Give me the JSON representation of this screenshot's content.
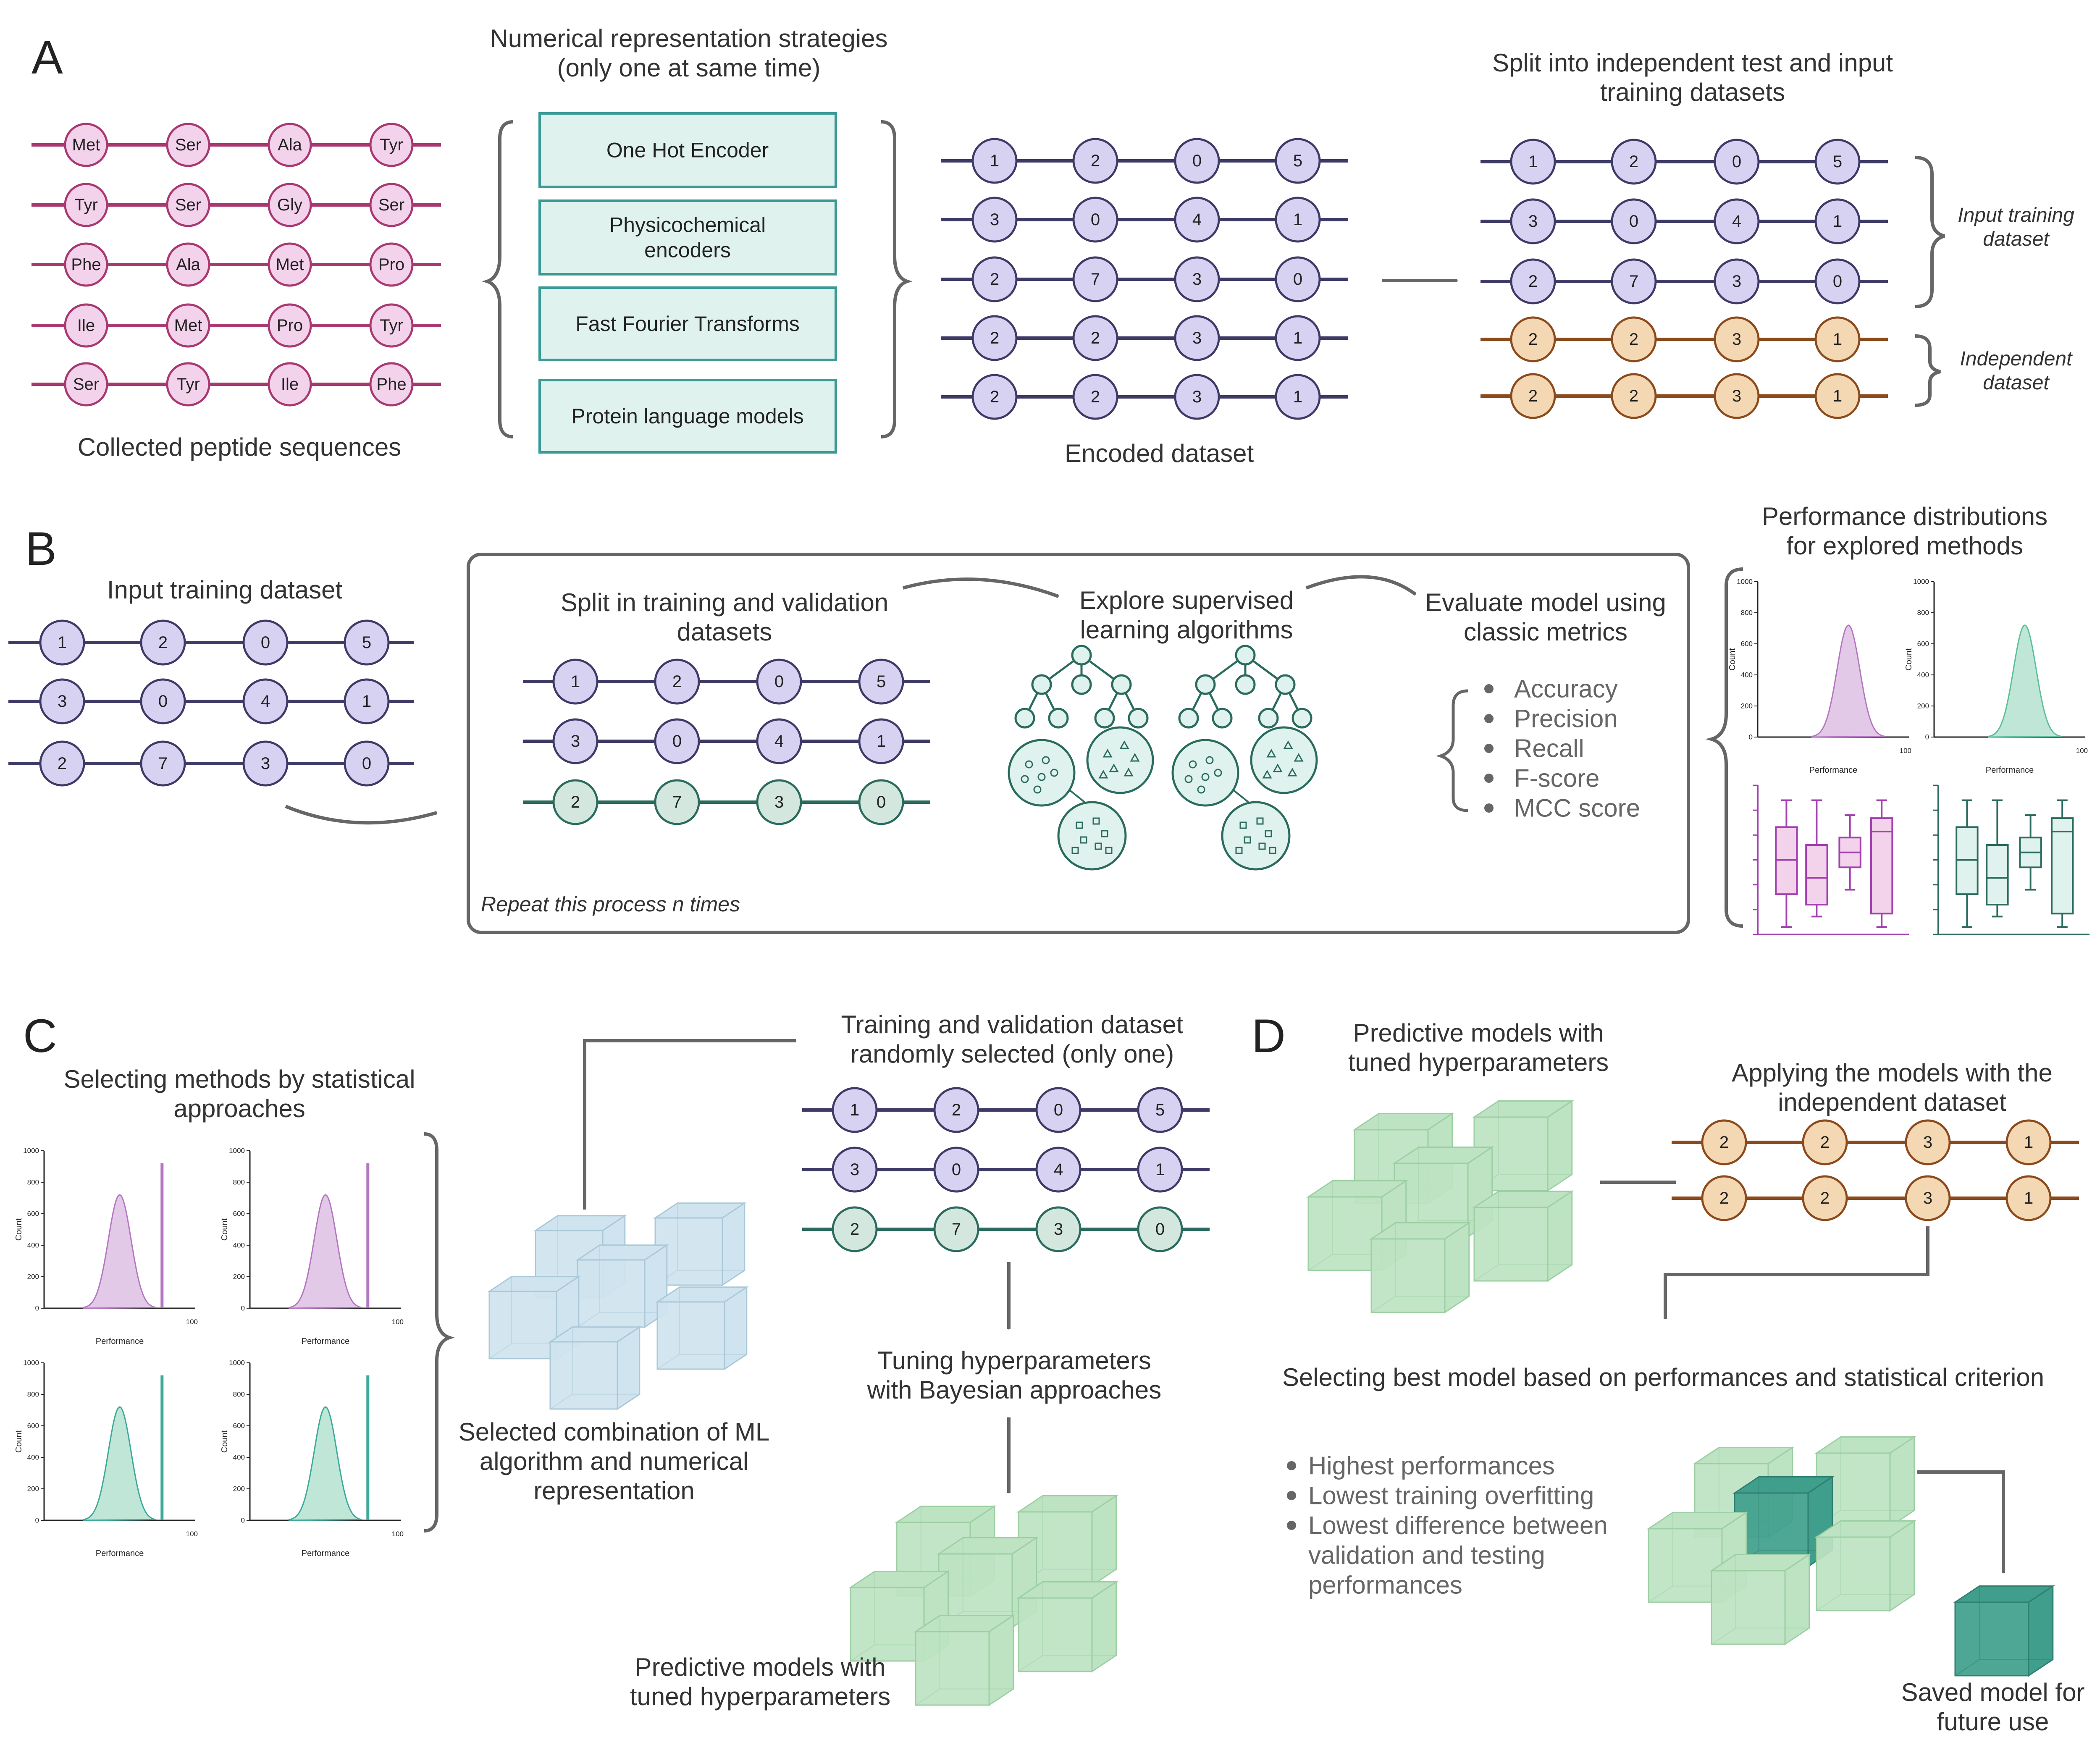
{
  "colors": {
    "pink_line": "#a8386f",
    "pink_fill": "#f3d2ec",
    "purple_line": "#3e3a66",
    "purple_fill": "#d7d1f2",
    "brown_line": "#8b4a1c",
    "brown_fill": "#f4d7b3",
    "green_line": "#2a6b5e",
    "green_fill": "#d3e7de",
    "teal_box_border": "#3a9a96",
    "teal_box_fill": "#e0f2ee",
    "hist_pink": "#e3c9e8",
    "hist_green": "#bfe6d6",
    "cube_green": "#bde3c2",
    "cube_blue": "#cfe4ee",
    "cube_teal": "#3f9e8c",
    "arrow": "#666666",
    "text": "#333333",
    "bullet_text": "#666666"
  },
  "panel_a": {
    "letter": "A",
    "peptides": [
      [
        "Met",
        "Ser",
        "Ala",
        "Tyr"
      ],
      [
        "Tyr",
        "Ser",
        "Gly",
        "Ser"
      ],
      [
        "Phe",
        "Ala",
        "Met",
        "Pro"
      ],
      [
        "Ile",
        "Met",
        "Pro",
        "Tyr"
      ],
      [
        "Ser",
        "Tyr",
        "Ile",
        "Phe"
      ]
    ],
    "peptides_caption": "Collected peptide sequences",
    "strategies_title": [
      "Numerical representation strategies",
      "(only one at same time)"
    ],
    "strategies": [
      [
        "One Hot Encoder"
      ],
      [
        "Physicochemical",
        "encoders"
      ],
      [
        "Fast Fourier Transforms"
      ],
      [
        "Protein language models"
      ]
    ],
    "encoded_rows": [
      [
        "1",
        "2",
        "0",
        "5"
      ],
      [
        "3",
        "0",
        "4",
        "1"
      ],
      [
        "2",
        "7",
        "3",
        "0"
      ],
      [
        "2",
        "2",
        "3",
        "1"
      ],
      [
        "2",
        "2",
        "3",
        "1"
      ]
    ],
    "encoded_caption": "Encoded dataset",
    "split_title": [
      "Split into independent test and input",
      "training datasets"
    ],
    "training_rows": [
      [
        "1",
        "2",
        "0",
        "5"
      ],
      [
        "3",
        "0",
        "4",
        "1"
      ],
      [
        "2",
        "7",
        "3",
        "0"
      ]
    ],
    "independent_rows": [
      [
        "2",
        "2",
        "3",
        "1"
      ],
      [
        "2",
        "2",
        "3",
        "1"
      ]
    ],
    "training_label": [
      "Input training",
      "dataset"
    ],
    "independent_label": [
      "Independent",
      "dataset"
    ]
  },
  "panel_b": {
    "letter": "B",
    "input_title": "Input training dataset",
    "input_rows": [
      [
        "1",
        "2",
        "0",
        "5"
      ],
      [
        "3",
        "0",
        "4",
        "1"
      ],
      [
        "2",
        "7",
        "3",
        "0"
      ]
    ],
    "split_title": [
      "Split in training and validation",
      "datasets"
    ],
    "split_rows": [
      [
        "1",
        "2",
        "0",
        "5"
      ],
      [
        "3",
        "0",
        "4",
        "1"
      ]
    ],
    "validation_row": [
      "2",
      "7",
      "3",
      "0"
    ],
    "explore_title": [
      "Explore supervised",
      "learning algorithms"
    ],
    "evaluate_title": [
      "Evaluate model using",
      "classic metrics"
    ],
    "metrics": [
      "Accuracy",
      "Precision",
      "Recall",
      "F-score",
      "MCC score"
    ],
    "repeat_note": "Repeat this process n times",
    "perf_title": [
      "Performance distributions",
      "for explored methods"
    ]
  },
  "hist": {
    "y_ticks": [
      "0",
      "200",
      "400",
      "600",
      "800",
      "1000"
    ],
    "x_max": "100",
    "y_label": "Count",
    "x_label": "Performance"
  },
  "panel_c": {
    "letter": "C",
    "select_title": [
      "Selecting methods by statistical",
      "approaches"
    ],
    "combo_caption": [
      "Selected combination of ML",
      "algorithm and numerical",
      "representation"
    ],
    "random_title": [
      "Training and validation dataset",
      "randomly selected (only one)"
    ],
    "random_rows": [
      [
        "1",
        "2",
        "0",
        "5"
      ],
      [
        "3",
        "0",
        "4",
        "1"
      ]
    ],
    "random_validation_row": [
      "2",
      "7",
      "3",
      "0"
    ],
    "tuning_title": [
      "Tuning hyperparameters",
      "with Bayesian approaches"
    ],
    "models_caption": [
      "Predictive models with",
      "tuned hyperparameters"
    ]
  },
  "panel_d": {
    "letter": "D",
    "models_title": [
      "Predictive models with",
      "tuned hyperparameters"
    ],
    "apply_title": [
      "Applying the models with the",
      "independent dataset"
    ],
    "apply_rows": [
      [
        "2",
        "2",
        "3",
        "1"
      ],
      [
        "2",
        "2",
        "3",
        "1"
      ]
    ],
    "select_best_title": "Selecting best model based on performances and statistical criterion",
    "criteria": [
      [
        "Highest performances"
      ],
      [
        "Lowest training overfitting"
      ],
      [
        "Lowest difference between",
        "validation and testing",
        "performances"
      ]
    ],
    "saved_caption": [
      "Saved model for",
      "future use"
    ]
  }
}
